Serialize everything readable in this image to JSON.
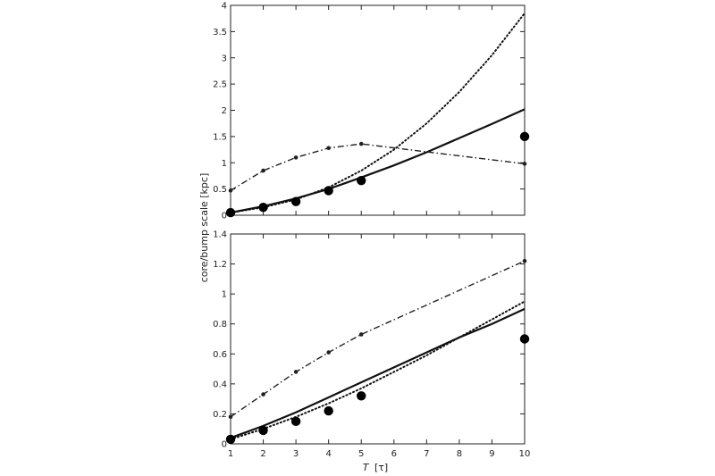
{
  "chart_data": {
    "type": "line",
    "ylabel": "core/bump scale [kpc]",
    "xlabel_symbol": "T",
    "xlabel_unit": "[τ]",
    "x_ticks": [
      "1",
      "2",
      "3",
      "4",
      "5",
      "6",
      "7",
      "8",
      "9",
      "10"
    ],
    "xlim": [
      1,
      10
    ],
    "grid": false,
    "panels": [
      {
        "ylim": [
          0,
          4
        ],
        "y_ticks": [
          "0",
          "0.5",
          "1",
          "1.5",
          "2",
          "2.5",
          "3",
          "3.5",
          "4"
        ],
        "series": [
          {
            "style": "solid",
            "x": [
              1,
              2,
              3,
              4,
              5,
              6,
              7,
              8,
              9,
              10
            ],
            "y": [
              0.05,
              0.17,
              0.32,
              0.5,
              0.72,
              0.95,
              1.2,
              1.47,
              1.74,
              2.02
            ]
          },
          {
            "style": "dotted",
            "x": [
              1,
              2,
              3,
              4,
              5,
              6,
              7,
              8,
              9,
              10
            ],
            "y": [
              0.05,
              0.15,
              0.3,
              0.53,
              0.85,
              1.25,
              1.75,
              2.35,
              3.05,
              3.85
            ]
          },
          {
            "style": "dashdot-markers",
            "x": [
              1,
              2,
              3,
              4,
              5,
              10
            ],
            "y": [
              0.47,
              0.85,
              1.1,
              1.28,
              1.36,
              0.98
            ]
          },
          {
            "style": "points",
            "x": [
              1,
              2,
              3,
              4,
              5,
              10
            ],
            "y": [
              0.05,
              0.15,
              0.26,
              0.47,
              0.66,
              1.5
            ]
          }
        ]
      },
      {
        "ylim": [
          0,
          1.4
        ],
        "y_ticks": [
          "0",
          "0.2",
          "0.4",
          "0.6",
          "0.8",
          "1",
          "1.2",
          "1.4"
        ],
        "series": [
          {
            "style": "solid",
            "x": [
              1,
              2,
              3,
              4,
              5,
              6,
              7,
              8,
              9,
              10
            ],
            "y": [
              0.04,
              0.12,
              0.21,
              0.31,
              0.41,
              0.51,
              0.61,
              0.71,
              0.8,
              0.9
            ]
          },
          {
            "style": "dotted",
            "x": [
              1,
              2,
              3,
              4,
              5,
              6,
              7,
              8,
              9,
              10
            ],
            "y": [
              0.03,
              0.1,
              0.18,
              0.27,
              0.37,
              0.48,
              0.59,
              0.71,
              0.83,
              0.95
            ]
          },
          {
            "style": "dashdot-markers",
            "x": [
              1,
              2,
              3,
              4,
              5,
              10
            ],
            "y": [
              0.18,
              0.33,
              0.48,
              0.61,
              0.73,
              1.22
            ]
          },
          {
            "style": "points",
            "x": [
              1,
              2,
              3,
              4,
              5,
              10
            ],
            "y": [
              0.03,
              0.09,
              0.15,
              0.22,
              0.32,
              0.7
            ]
          }
        ]
      }
    ]
  }
}
